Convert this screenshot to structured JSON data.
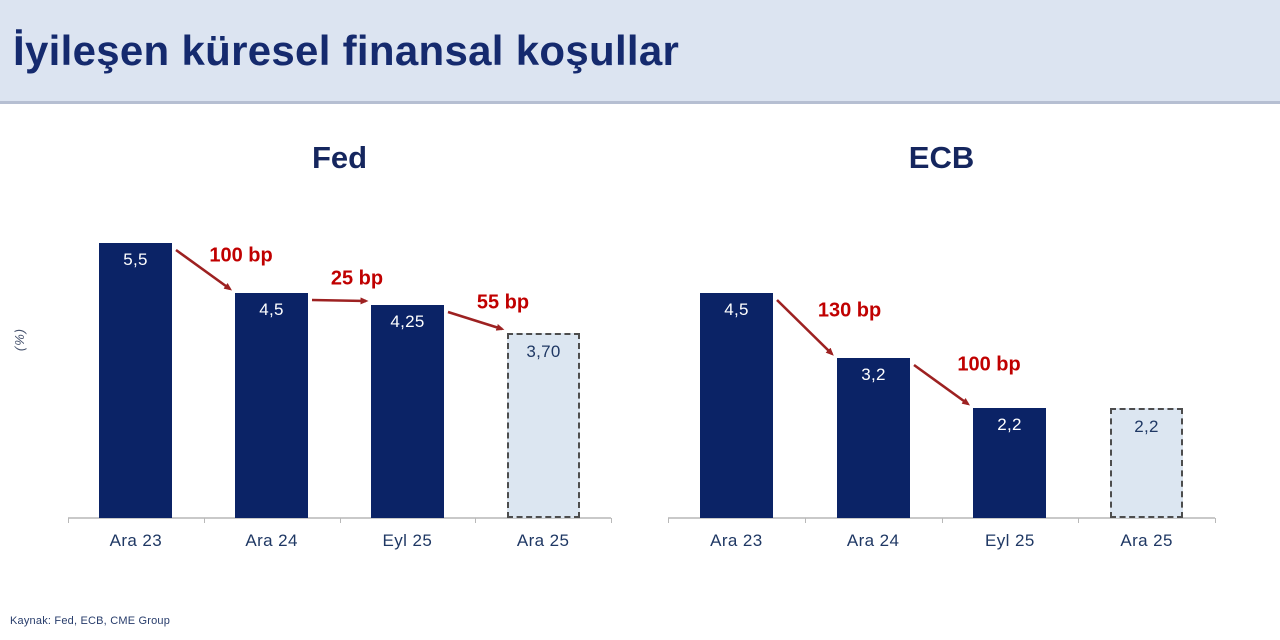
{
  "title": "İyileşen küresel finansal koşullar",
  "y_axis_label": "(%)",
  "source": "Kaynak: Fed, ECB, CME Group",
  "colors": {
    "band_background": "#dce4f1",
    "title_text": "#152a6e",
    "bar_navy": "#0b2366",
    "projected_bar_fill": "#dce6f1",
    "projected_bar_border": "#4d4d4d",
    "rate_change_red": "#c00000",
    "arrow_red": "#9d2121",
    "axis_gray": "#c9c9c9",
    "label_navy": "#1f3864"
  },
  "chart_data": [
    {
      "type": "bar",
      "title": "Fed",
      "ylabel": "(%)",
      "ylim": [
        0,
        5.5
      ],
      "grid": false,
      "legend": false,
      "categories": [
        "Ara 23",
        "Ara 24",
        "Eyl 25",
        "Ara 25"
      ],
      "values": [
        5.5,
        4.5,
        4.25,
        3.7
      ],
      "value_labels": [
        "5,5",
        "4,5",
        "4,25",
        "3,70"
      ],
      "bar_styles": [
        "solid",
        "solid",
        "solid",
        "projected-dashed"
      ],
      "transitions": [
        {
          "label": "100 bp",
          "from": "Ara 23",
          "to": "Ara 24"
        },
        {
          "label": "25 bp",
          "from": "Ara 24",
          "to": "Eyl 25"
        },
        {
          "label": "55 bp",
          "from": "Eyl 25",
          "to": "Ara 25"
        }
      ]
    },
    {
      "type": "bar",
      "title": "ECB",
      "ylabel": "(%)",
      "ylim": [
        0,
        5.5
      ],
      "grid": false,
      "legend": false,
      "categories": [
        "Ara 23",
        "Ara 24",
        "Eyl 25",
        "Ara 25"
      ],
      "values": [
        4.5,
        3.2,
        2.2,
        2.2
      ],
      "value_labels": [
        "4,5",
        "3,2",
        "2,2",
        "2,2"
      ],
      "bar_styles": [
        "solid",
        "solid",
        "solid",
        "projected-dashed"
      ],
      "transitions": [
        {
          "label": "130 bp",
          "from": "Ara 23",
          "to": "Ara 24"
        },
        {
          "label": "100 bp",
          "from": "Ara 24",
          "to": "Eyl 25"
        }
      ]
    }
  ]
}
